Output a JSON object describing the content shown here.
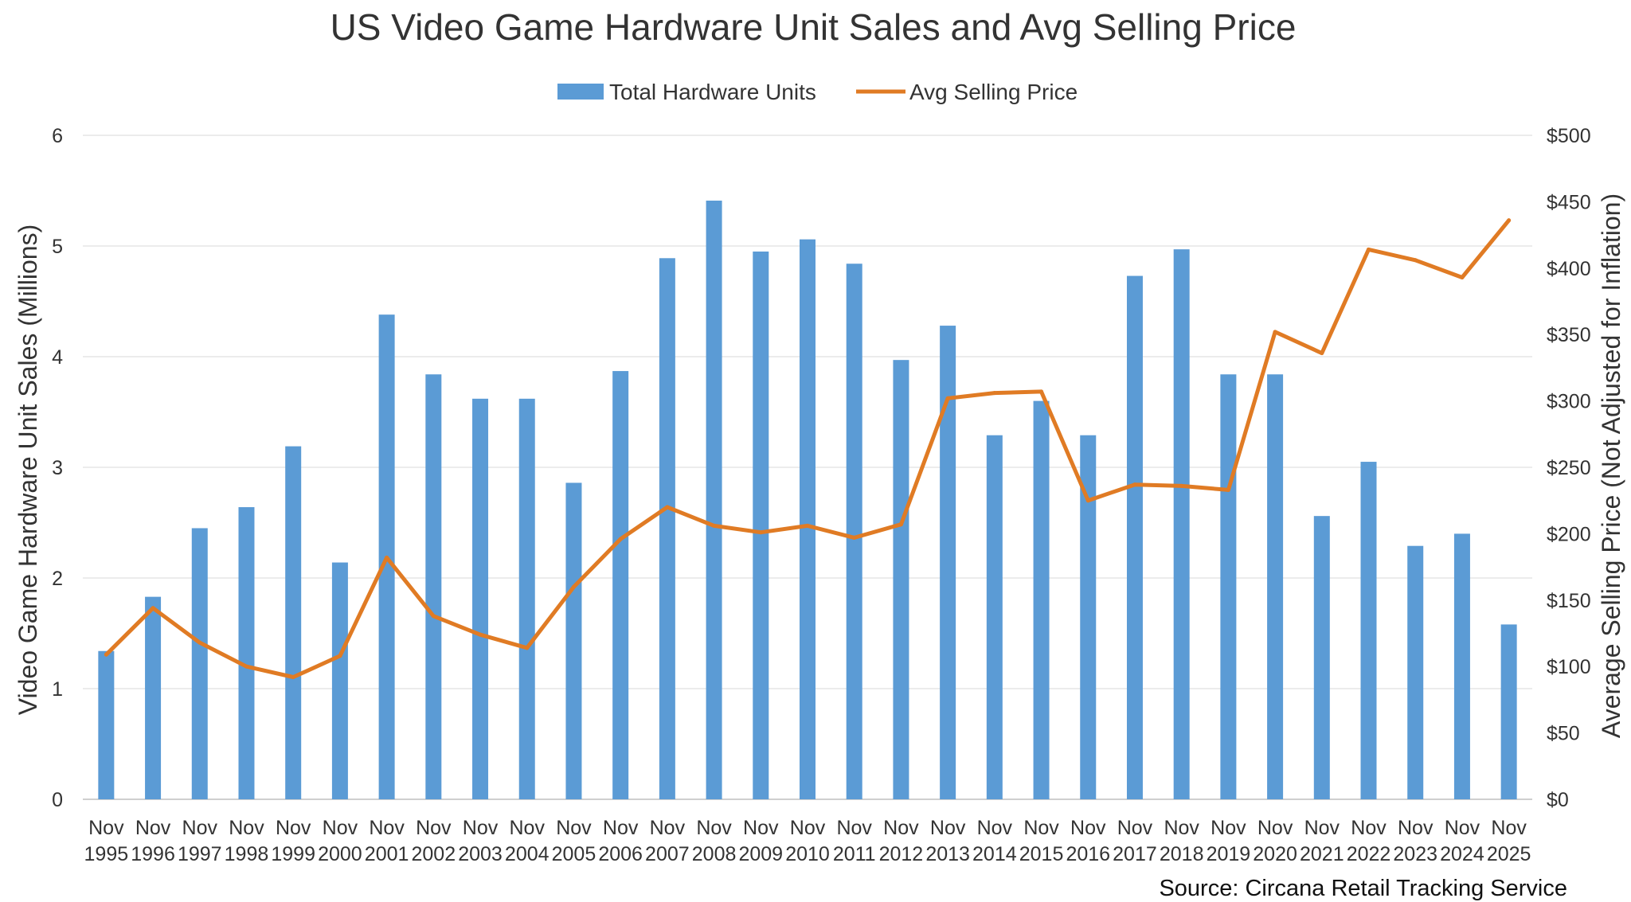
{
  "chart_data": {
    "type": "bar",
    "title": "US Video Game Hardware Unit Sales and Avg Selling Price",
    "source": "Source: Circana Retail Tracking Service",
    "categories_line1": [
      "Nov",
      "Nov",
      "Nov",
      "Nov",
      "Nov",
      "Nov",
      "Nov",
      "Nov",
      "Nov",
      "Nov",
      "Nov",
      "Nov",
      "Nov",
      "Nov",
      "Nov",
      "Nov",
      "Nov",
      "Nov",
      "Nov",
      "Nov",
      "Nov",
      "Nov",
      "Nov",
      "Nov",
      "Nov",
      "Nov",
      "Nov",
      "Nov",
      "Nov",
      "Nov",
      "Nov"
    ],
    "categories_line2": [
      "1995",
      "1996",
      "1997",
      "1998",
      "1999",
      "2000",
      "2001",
      "2002",
      "2003",
      "2004",
      "2005",
      "2006",
      "2007",
      "2008",
      "2009",
      "2010",
      "2011",
      "2012",
      "2013",
      "2014",
      "2015",
      "2016",
      "2017",
      "2018",
      "2019",
      "2020",
      "2021",
      "2022",
      "2023",
      "2024",
      "2025"
    ],
    "ylabel": "Video Game Hardware Unit Sales (Millions)",
    "y2label": "Average Selling Price (Not Adjusted for Inflation)",
    "ylim": [
      0,
      6
    ],
    "y2lim": [
      0,
      500
    ],
    "y_ticks": [
      "0",
      "1",
      "2",
      "3",
      "4",
      "5",
      "6"
    ],
    "y2_ticks": [
      "$0",
      "$50",
      "$100",
      "$150",
      "$200",
      "$250",
      "$300",
      "$350",
      "$400",
      "$450",
      "$500"
    ],
    "grid": true,
    "legend_position": "top-center",
    "series": [
      {
        "name": "Total Hardware Units",
        "kind": "bar",
        "axis": "left",
        "color": "#5b9bd5",
        "values": [
          1.34,
          1.83,
          2.45,
          2.64,
          3.19,
          2.14,
          4.38,
          3.84,
          3.62,
          3.62,
          2.86,
          3.87,
          4.89,
          5.41,
          4.95,
          5.06,
          4.84,
          3.97,
          4.28,
          3.29,
          3.6,
          3.29,
          4.73,
          4.97,
          3.84,
          3.84,
          2.56,
          3.05,
          2.29,
          2.4,
          1.58
        ]
      },
      {
        "name": "Avg Selling Price",
        "kind": "line",
        "axis": "right",
        "color": "#e07b24",
        "values": [
          109,
          144,
          118,
          100,
          92,
          108,
          182,
          138,
          124,
          114,
          160,
          196,
          220,
          206,
          201,
          206,
          197,
          207,
          302,
          306,
          307,
          225,
          237,
          236,
          233,
          352,
          336,
          414,
          406,
          393,
          436
        ]
      }
    ]
  }
}
